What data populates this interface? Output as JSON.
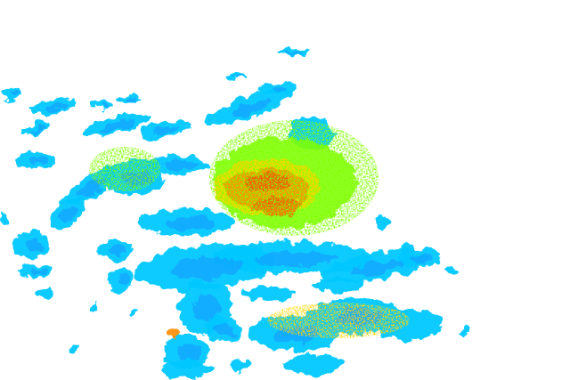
{
  "radar": {
    "background": "#ffffff",
    "palette": {
      "light": "#00c8ff",
      "medium": "#1e90ff",
      "moderate": "#7fff00",
      "strong": "#ffd700",
      "heavy": "#ff8c00",
      "intense": "#ff4500"
    }
  }
}
